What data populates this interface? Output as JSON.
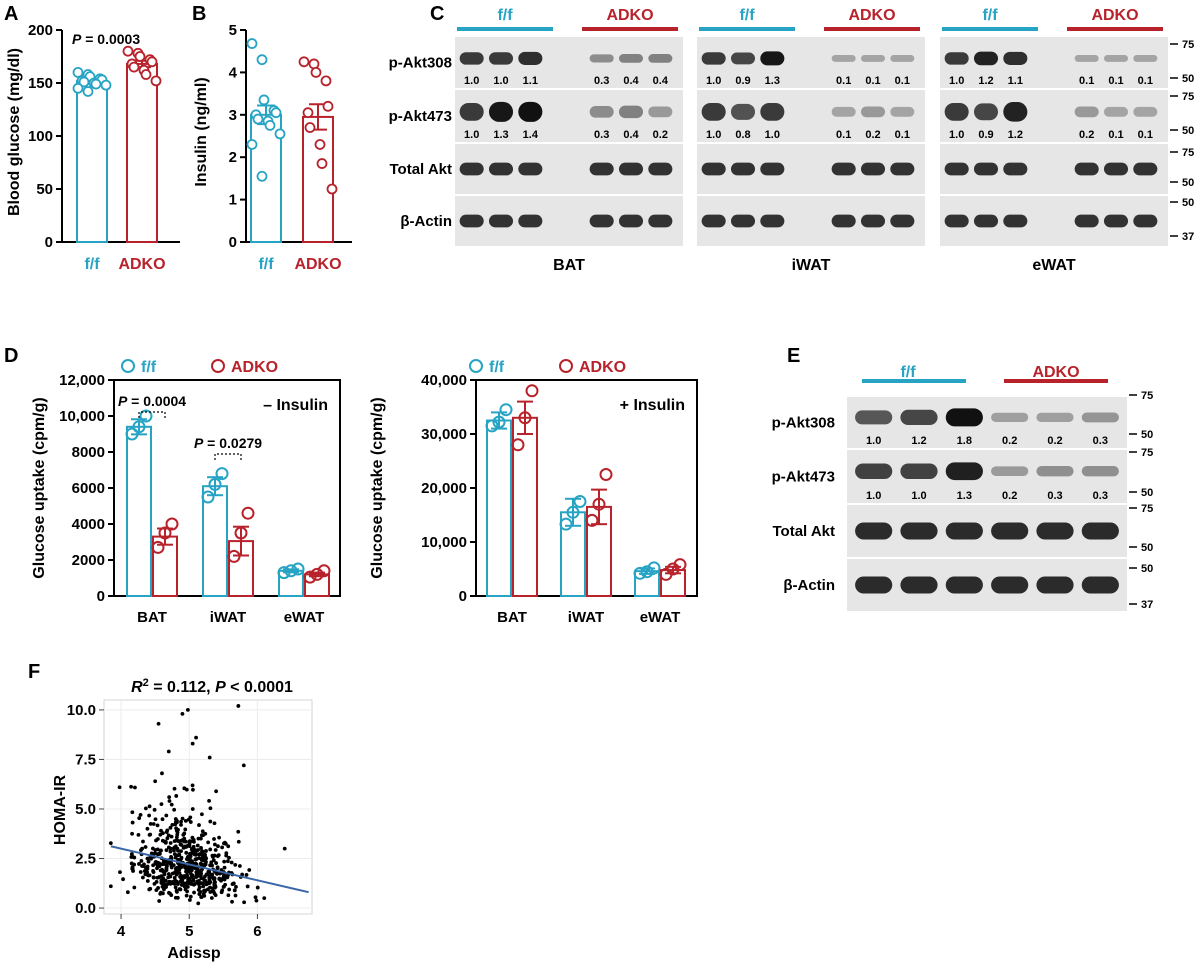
{
  "colors": {
    "ff": "#27a4c4",
    "adko": "#b8222b",
    "text": "#000000",
    "line": "#3a66a8",
    "blot_bg": "#e6e6e6",
    "band": "#111111"
  },
  "panels": {
    "A": {
      "label": "A"
    },
    "B": {
      "label": "B"
    },
    "C": {
      "label": "C"
    },
    "D": {
      "label": "D"
    },
    "E": {
      "label": "E"
    },
    "F": {
      "label": "F"
    }
  },
  "blot_C": {
    "ff_label": "f/f",
    "adko_label": "ADKO",
    "rows": [
      "p-Akt308",
      "p-Akt473",
      "Total Akt",
      "β-Actin"
    ],
    "tissues": [
      "BAT",
      "iWAT",
      "eWAT"
    ],
    "mw_markers": [
      "75",
      "50",
      "75",
      "50",
      "75",
      "50",
      "50",
      "37"
    ],
    "quant": {
      "BAT": {
        "p308": [
          "1.0",
          "1.0",
          "1.1",
          "0.3",
          "0.4",
          "0.4"
        ],
        "p473": [
          "1.0",
          "1.3",
          "1.4",
          "0.3",
          "0.4",
          "0.2"
        ]
      },
      "iWAT": {
        "p308": [
          "1.0",
          "0.9",
          "1.3",
          "0.1",
          "0.1",
          "0.1"
        ],
        "p473": [
          "1.0",
          "0.8",
          "1.0",
          "0.1",
          "0.2",
          "0.1"
        ]
      },
      "eWAT": {
        "p308": [
          "1.0",
          "1.2",
          "1.1",
          "0.1",
          "0.1",
          "0.1"
        ],
        "p473": [
          "0.2",
          "0.1",
          "0.1",
          "0.2",
          "0.1",
          "0.1"
        ]
      }
    },
    "eWAT_ff_p473": [
      "1.0",
      "0.9",
      "1.2"
    ]
  },
  "blot_E": {
    "ff_label": "f/f",
    "adko_label": "ADKO",
    "rows": [
      "p-Akt308",
      "p-Akt473",
      "Total Akt",
      "β-Actin"
    ],
    "p308": [
      "1.0",
      "1.2",
      "1.8",
      "0.2",
      "0.2",
      "0.3"
    ],
    "p473": [
      "1.0",
      "1.0",
      "1.3",
      "0.2",
      "0.3",
      "0.3"
    ],
    "mw_markers": [
      "75",
      "50",
      "75",
      "50",
      "75",
      "50",
      "50",
      "37"
    ]
  },
  "chart_data": [
    {
      "id": "A",
      "type": "bar",
      "categories": [
        "f/f",
        "ADKO"
      ],
      "values": [
        152,
        168
      ],
      "errors": [
        3,
        3
      ],
      "points": [
        [
          160,
          158,
          156,
          154,
          153,
          152,
          151,
          150,
          149,
          148,
          145,
          142
        ],
        [
          180,
          178,
          175,
          172,
          170,
          168,
          165,
          162,
          158,
          152
        ]
      ],
      "ylabel": "Blood glucose (mg/dl)",
      "ylim": [
        0,
        200
      ],
      "yticks": [
        "0",
        "50",
        "100",
        "150",
        "200"
      ],
      "annotation_prefix": "P",
      "annotation": " = 0.0003"
    },
    {
      "id": "B",
      "type": "bar",
      "categories": [
        "f/f",
        "ADKO"
      ],
      "values": [
        3.0,
        2.95
      ],
      "errors": [
        0.22,
        0.3
      ],
      "points": [
        [
          4.68,
          4.3,
          3.35,
          3.1,
          3.05,
          3.0,
          2.9,
          2.85,
          2.75,
          2.55,
          2.3,
          1.55
        ],
        [
          4.25,
          4.2,
          4.0,
          3.8,
          3.2,
          3.05,
          2.7,
          2.3,
          1.85,
          1.25
        ]
      ],
      "ylabel": "Insulin (ng/ml)",
      "ylim": [
        0,
        5
      ],
      "yticks": [
        "0",
        "1",
        "2",
        "3",
        "4",
        "5"
      ]
    },
    {
      "id": "D-left",
      "type": "bar",
      "categories": [
        "BAT",
        "iWAT",
        "eWAT"
      ],
      "series": [
        {
          "name": "f/f",
          "values": [
            9400,
            6100,
            1400
          ],
          "errors": [
            420,
            500,
            80
          ],
          "points": [
            [
              9000,
              9400,
              10000
            ],
            [
              5500,
              6200,
              6800
            ],
            [
              1300,
              1400,
              1500
            ]
          ]
        },
        {
          "name": "ADKO",
          "values": [
            3300,
            3050,
            1200
          ],
          "errors": [
            450,
            800,
            100
          ],
          "points": [
            [
              2700,
              3500,
              4000
            ],
            [
              2200,
              3500,
              4600
            ],
            [
              1050,
              1200,
              1400
            ]
          ]
        }
      ],
      "ylabel": "Glucose uptake (cpm/g)",
      "ylim": [
        0,
        12000
      ],
      "yticks": [
        "0",
        "2000",
        "4000",
        "6000",
        "8000",
        "10,000",
        "12,000"
      ],
      "condition": "– Insulin",
      "stats": [
        {
          "prefix": "P",
          "text": " = 0.0004",
          "category": 0
        },
        {
          "prefix": "P",
          "text": " = 0.0279",
          "category": 1
        }
      ]
    },
    {
      "id": "D-right",
      "type": "bar",
      "categories": [
        "BAT",
        "iWAT",
        "eWAT"
      ],
      "series": [
        {
          "name": "f/f",
          "values": [
            32500,
            15500,
            4600
          ],
          "errors": [
            1500,
            2500,
            500
          ],
          "points": [
            [
              31500,
              32200,
              34500
            ],
            [
              13300,
              15500,
              17500
            ],
            [
              4200,
              4500,
              5200
            ]
          ]
        },
        {
          "name": "ADKO",
          "values": [
            33000,
            16500,
            4800
          ],
          "errors": [
            3000,
            3200,
            600
          ],
          "points": [
            [
              28000,
              33000,
              38000
            ],
            [
              14000,
              17000,
              22500
            ],
            [
              4000,
              5000,
              5800
            ]
          ]
        }
      ],
      "ylabel": "Glucose uptake (cpm/g)",
      "ylim": [
        0,
        40000
      ],
      "yticks": [
        "0",
        "10,000",
        "20,000",
        "30,000",
        "40,000"
      ],
      "condition": "+ Insulin"
    },
    {
      "id": "F",
      "type": "scatter",
      "title_prefix": "R",
      "title_sup": "2",
      "title_mid": " = 0.112, ",
      "title_p": "P",
      "title_end": " < 0.0001",
      "xlabel": "Adissp",
      "ylabel": "HOMA-IR",
      "xlim": [
        3.75,
        6.8
      ],
      "ylim": [
        -0.3,
        10.5
      ],
      "xticks": [
        "4",
        "5",
        "6"
      ],
      "yticks": [
        "0.0",
        "2.5",
        "5.0",
        "7.5",
        "10.0"
      ],
      "fit": {
        "intercept": 6.2,
        "slope": -0.8
      },
      "n_points": 600,
      "outliers": [
        [
          5.72,
          10.2
        ],
        [
          4.98,
          10.0
        ],
        [
          4.9,
          9.8
        ],
        [
          4.55,
          9.3
        ],
        [
          5.1,
          8.6
        ],
        [
          5.05,
          8.3
        ],
        [
          4.7,
          7.9
        ],
        [
          5.3,
          7.6
        ],
        [
          4.5,
          6.4
        ],
        [
          4.6,
          6.8
        ],
        [
          5.8,
          7.2
        ],
        [
          6.4,
          3.0
        ],
        [
          3.85,
          1.1
        ],
        [
          4.1,
          0.8
        ],
        [
          6.1,
          0.5
        ]
      ]
    }
  ]
}
